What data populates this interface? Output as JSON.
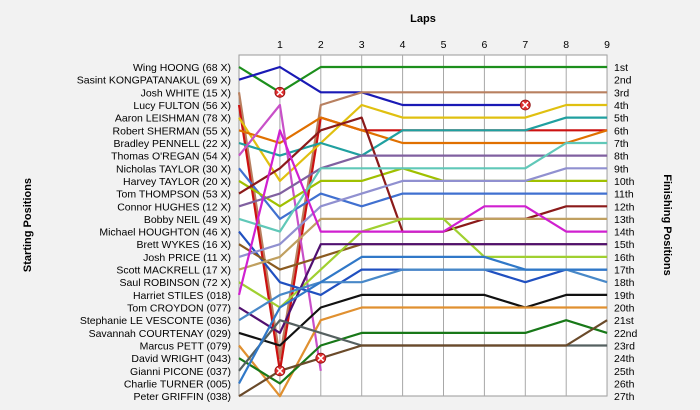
{
  "chart_data": {
    "type": "line",
    "title": "",
    "xlabel": "Laps",
    "ylabel_left": "Starting Positions",
    "ylabel_right": "Finishing Positions",
    "x_ticks": [
      "1",
      "2",
      "3",
      "4",
      "5",
      "6",
      "7",
      "8",
      "9"
    ],
    "finish_labels": [
      "1st",
      "2nd",
      "3rd",
      "4th",
      "5th",
      "6th",
      "7th",
      "8th",
      "9th",
      "10th",
      "11th",
      "12th",
      "13th",
      "14th",
      "15th",
      "16th",
      "17th",
      "18th",
      "19th",
      "20th",
      "21st",
      "22nd",
      "23rd",
      "24th",
      "25th",
      "26th",
      "27th"
    ],
    "grid": "vertical",
    "series": [
      {
        "name": "Wing HOONG (68 X)",
        "color": "#1c8f1c",
        "positions": [
          1,
          3,
          1,
          1,
          1,
          1,
          1,
          1,
          1,
          1
        ]
      },
      {
        "name": "Sasint KONGPATANAKUL (69 X)",
        "color": "#1a1ab5",
        "positions": [
          2,
          1,
          3,
          3,
          4,
          4,
          4,
          4
        ]
      },
      {
        "name": "Josh WHITE (15 X)",
        "color": "#b88060",
        "positions": [
          3,
          24,
          4,
          3,
          3,
          3,
          3,
          3,
          3,
          3
        ]
      },
      {
        "name": "Lucy FULTON (56 X)",
        "color": "#cc1111",
        "positions": [
          4,
          25,
          5,
          6,
          6,
          6,
          6,
          6,
          6,
          6
        ]
      },
      {
        "name": "Aaron LEISHMAN (78 X)",
        "color": "#e0c010",
        "positions": [
          5,
          10,
          7,
          4,
          5,
          5,
          5,
          5,
          4,
          4
        ]
      },
      {
        "name": "Robert SHERMAN (55 X)",
        "color": "#e07000",
        "positions": [
          6,
          7,
          5,
          6,
          7,
          7,
          7,
          7,
          7,
          6
        ]
      },
      {
        "name": "Bradley PENNELL (22 X)",
        "color": "#20a0a0",
        "positions": [
          7,
          8,
          7,
          8,
          6,
          6,
          6,
          6,
          5,
          5
        ]
      },
      {
        "name": "Thomas O'REGAN (54 X)",
        "color": "#c850c8",
        "positions": [
          8,
          4,
          25
        ]
      },
      {
        "name": "Nicholas TAYLOR (30 X)",
        "color": "#4070d0",
        "positions": [
          9,
          13,
          11,
          12,
          11,
          11,
          11,
          11,
          11,
          11
        ]
      },
      {
        "name": "Harvey TAYLOR (20 X)",
        "color": "#a0c000",
        "positions": [
          10,
          12,
          10,
          10,
          9,
          10,
          10,
          10,
          10,
          10
        ]
      },
      {
        "name": "Tom THOMPSON (53 X)",
        "color": "#8b1a1a",
        "positions": [
          11,
          9,
          6,
          5,
          14,
          14,
          13,
          13,
          12,
          12
        ]
      },
      {
        "name": "Connor HUGHES (12 X)",
        "color": "#8060a0",
        "positions": [
          12,
          11,
          9,
          8,
          8,
          8,
          8,
          8,
          8,
          8
        ]
      },
      {
        "name": "Bobby NEIL (49 X)",
        "color": "#60c8b8",
        "positions": [
          13,
          14,
          9,
          9,
          9,
          9,
          9,
          9,
          7,
          7
        ]
      },
      {
        "name": "Michael HOUGHTON (46 X)",
        "color": "#2050c0",
        "positions": [
          14,
          18,
          19,
          17,
          17,
          17,
          17,
          18,
          17,
          17
        ]
      },
      {
        "name": "Brett WYKES (16 X)",
        "color": "#8a5a20",
        "positions": [
          15,
          17,
          16,
          15,
          15,
          15,
          15,
          15,
          15,
          15
        ]
      },
      {
        "name": "Josh PRICE (11 X)",
        "color": "#9090d0",
        "positions": [
          16,
          15,
          12,
          11,
          10,
          10,
          10,
          10,
          9,
          9
        ]
      },
      {
        "name": "Scott MACKRELL (17 X)",
        "color": "#c0a060",
        "positions": [
          17,
          16,
          13,
          13,
          13,
          13,
          13,
          13,
          13,
          13
        ]
      },
      {
        "name": "Saul ROBINSON (72 X)",
        "color": "#a0d030",
        "positions": [
          18,
          20,
          17,
          14,
          13,
          13,
          16,
          16,
          16,
          16
        ]
      },
      {
        "name": "Harriet STILES (018)",
        "color": "#d020d0",
        "positions": [
          19,
          6,
          14,
          14,
          14,
          14,
          12,
          12,
          14,
          14
        ]
      },
      {
        "name": "Tom CROYDON (077)",
        "color": "#501070",
        "positions": [
          20,
          22,
          15,
          15,
          15,
          15,
          15,
          15,
          15,
          15
        ]
      },
      {
        "name": "Stephanie LE VESCONTE (036)",
        "color": "#4888c8",
        "positions": [
          21,
          19,
          18,
          18,
          17,
          17,
          17,
          17,
          17,
          18
        ]
      },
      {
        "name": "Savannah COURTENAY (029)",
        "color": "#111111",
        "positions": [
          22,
          23,
          20,
          19,
          19,
          19,
          19,
          20,
          19,
          19
        ]
      },
      {
        "name": "Marcus PETT (079)",
        "color": "#e09030",
        "positions": [
          23,
          27,
          21,
          20,
          20,
          20,
          20,
          20,
          20,
          20
        ]
      },
      {
        "name": "David WRIGHT (043)",
        "color": "#187818",
        "positions": [
          24,
          26,
          23,
          22,
          22,
          22,
          22,
          22,
          21,
          22
        ]
      },
      {
        "name": "Gianni PICONE (037)",
        "color": "#556060",
        "positions": [
          25,
          21,
          22,
          23,
          23,
          23,
          23,
          23,
          23,
          23
        ]
      },
      {
        "name": "Charlie TURNER (005)",
        "color": "#3078c8",
        "positions": [
          26,
          20,
          18,
          16,
          16,
          16,
          16,
          17,
          17,
          17
        ]
      },
      {
        "name": "Peter GRIFFIN (038)",
        "color": "#6a4a2a",
        "positions": [
          27,
          25,
          24,
          23,
          23,
          23,
          23,
          23,
          23,
          21
        ]
      }
    ],
    "retirements": [
      {
        "lap": 1,
        "position": 3
      },
      {
        "lap": 7,
        "position": 4
      },
      {
        "lap": 1,
        "position": 25
      },
      {
        "lap": 2,
        "position": 24
      }
    ]
  }
}
